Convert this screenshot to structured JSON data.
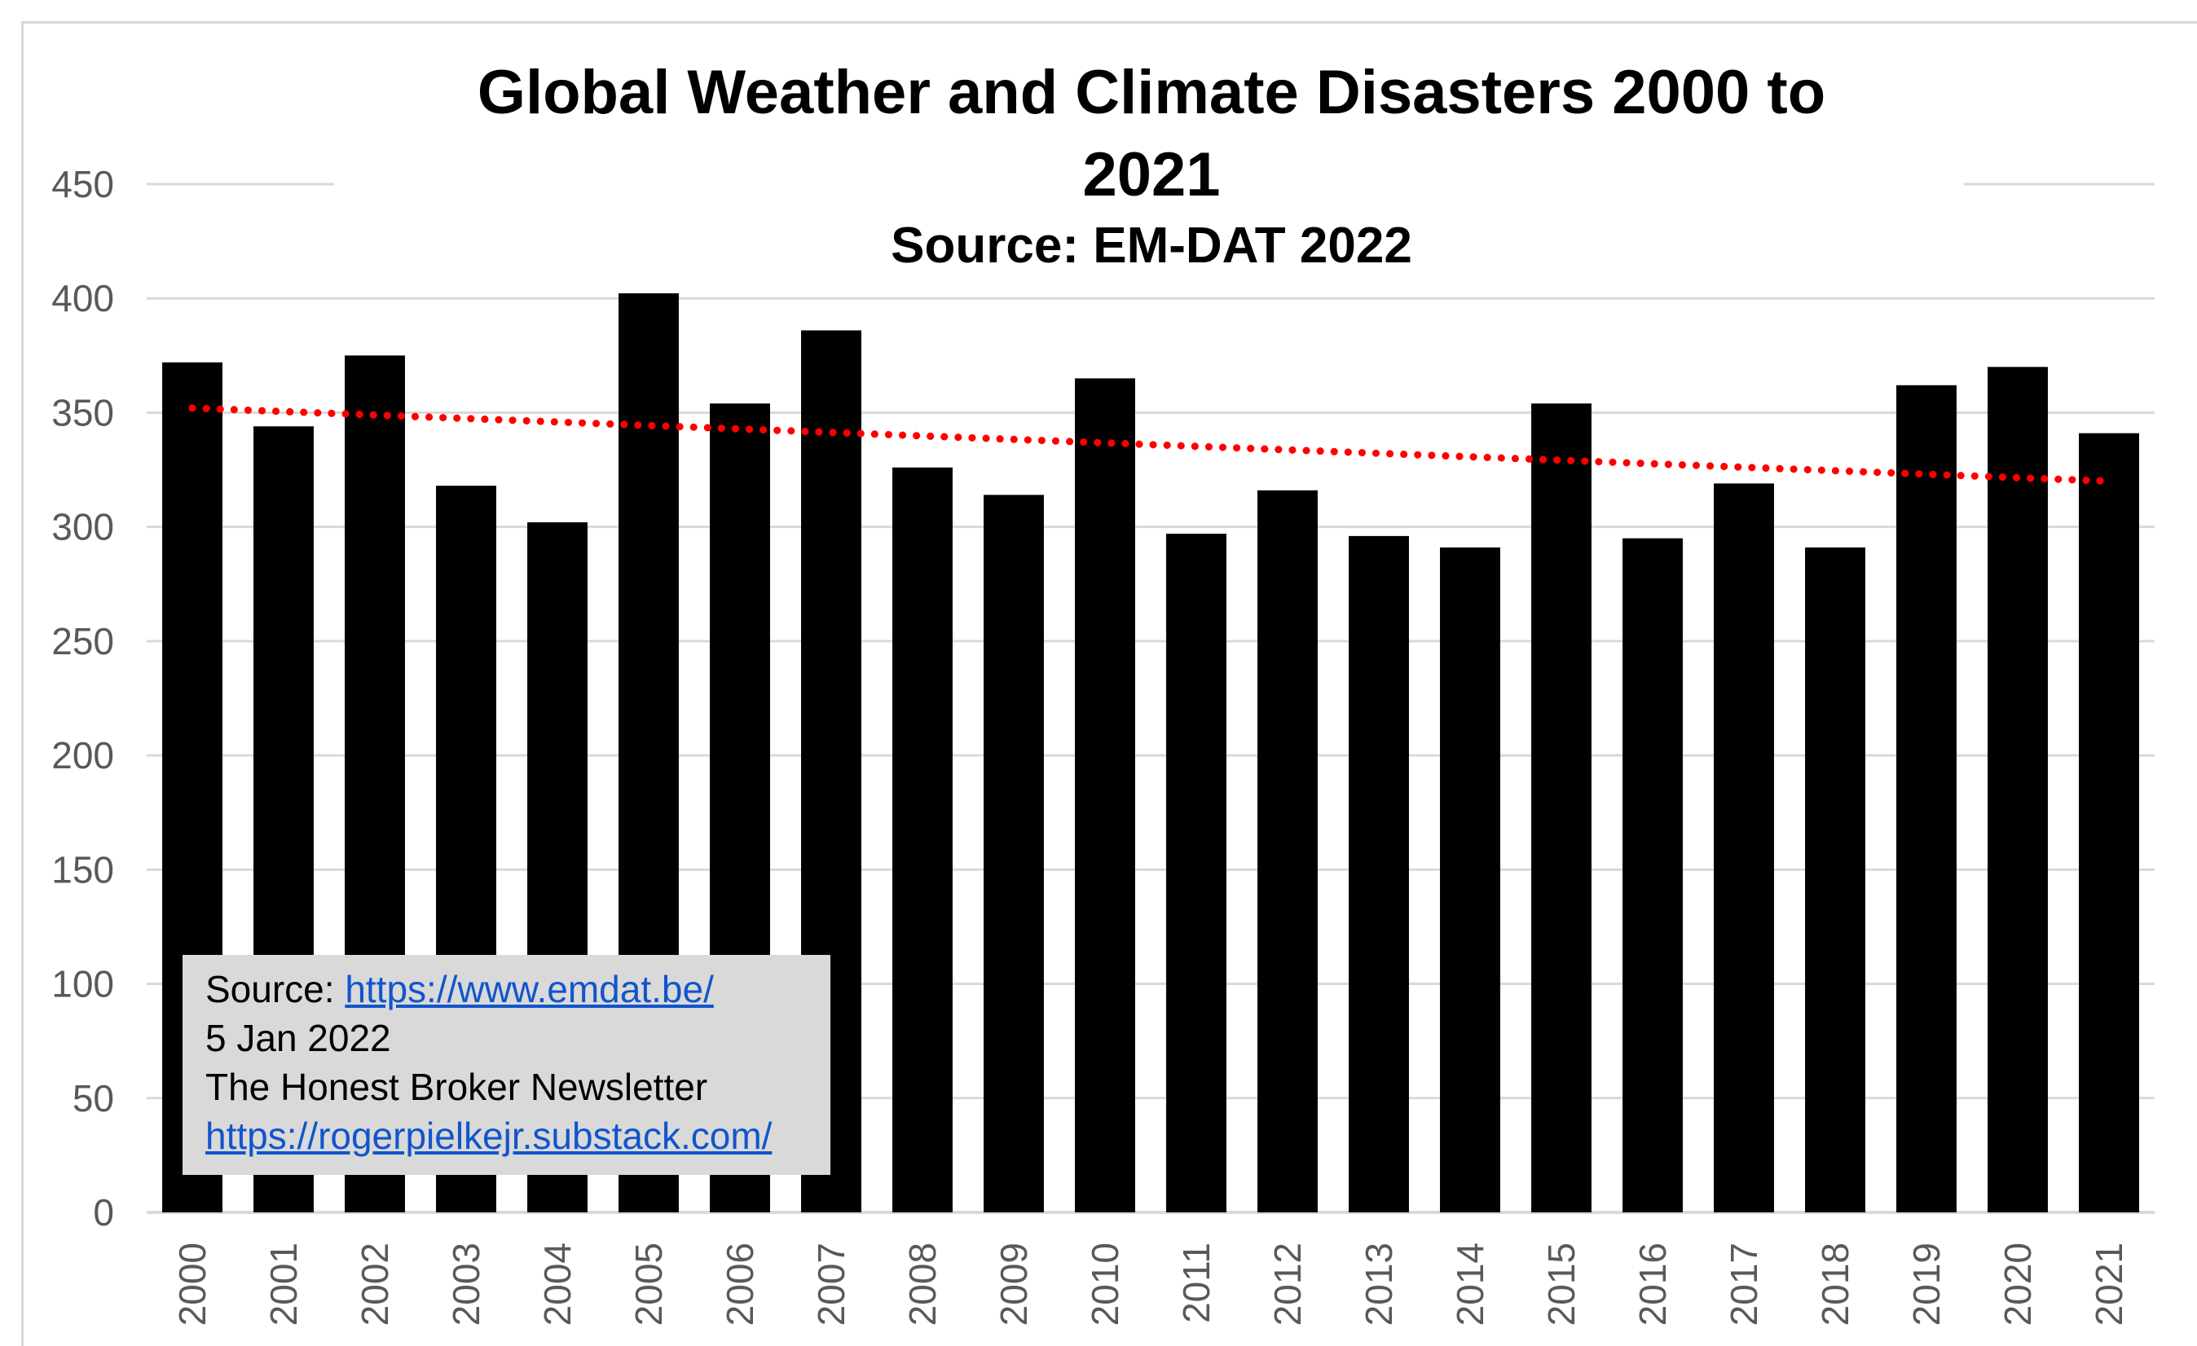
{
  "chart_data": {
    "type": "bar",
    "title_line1": "Global Weather and Climate Disasters 2000 to",
    "title_line2": "2021",
    "subtitle": "Source: EM-DAT 2022",
    "xlabel": "",
    "ylabel": "",
    "categories": [
      "2000",
      "2001",
      "2002",
      "2003",
      "2004",
      "2005",
      "2006",
      "2007",
      "2008",
      "2009",
      "2010",
      "2011",
      "2012",
      "2013",
      "2014",
      "2015",
      "2016",
      "2017",
      "2018",
      "2019",
      "2020",
      "2021"
    ],
    "values": [
      372,
      344,
      375,
      318,
      302,
      408,
      354,
      386,
      326,
      314,
      365,
      297,
      316,
      296,
      291,
      354,
      295,
      319,
      291,
      362,
      370,
      341
    ],
    "ylim": [
      0,
      450
    ],
    "yticks": [
      0,
      50,
      100,
      150,
      200,
      250,
      300,
      350,
      400,
      450
    ],
    "grid": true,
    "legend": "none",
    "trendline": {
      "type": "linear",
      "style": "dotted",
      "start": 352,
      "end": 320
    },
    "colors": {
      "bar": "#000000",
      "trend": "#ff0000",
      "grid": "#d9d9d9",
      "tick": "#595959"
    },
    "annotation": {
      "source_label": "Source: ",
      "source_url": "https://www.emdat.be/",
      "date": "5 Jan 2022",
      "newsletter": "The Honest Broker Newsletter",
      "newsletter_url": "https://rogerpielkejr.substack.com/"
    }
  }
}
